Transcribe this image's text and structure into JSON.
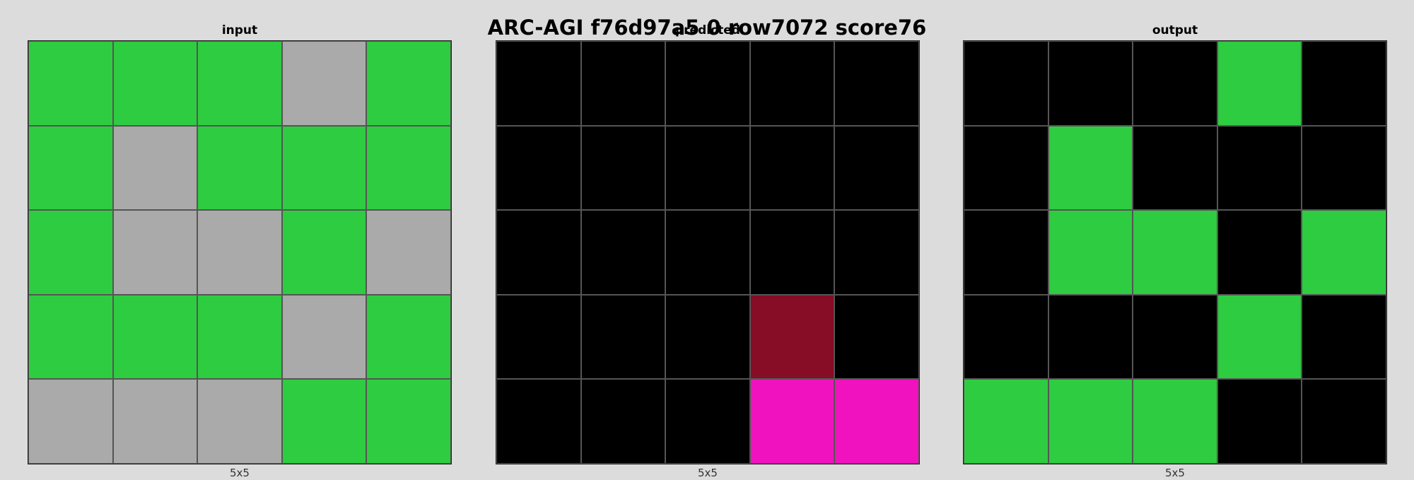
{
  "title": "ARC-AGI f76d97a5 0 row7072 score76",
  "palette": {
    "0": "#000000",
    "3": "#2ecc40",
    "5": "#aaaaaa",
    "6": "#f012be",
    "9": "#870c25"
  },
  "panels": [
    {
      "name": "input",
      "label": "input",
      "dims": "5x5",
      "grid": [
        [
          3,
          3,
          3,
          5,
          3
        ],
        [
          3,
          5,
          3,
          3,
          3
        ],
        [
          3,
          5,
          5,
          3,
          5
        ],
        [
          3,
          3,
          3,
          5,
          3
        ],
        [
          5,
          5,
          5,
          3,
          3
        ]
      ]
    },
    {
      "name": "predicted",
      "label": "predicted",
      "dims": "5x5",
      "grid": [
        [
          0,
          0,
          0,
          0,
          0
        ],
        [
          0,
          0,
          0,
          0,
          0
        ],
        [
          0,
          0,
          0,
          0,
          0
        ],
        [
          0,
          0,
          0,
          9,
          0
        ],
        [
          0,
          0,
          0,
          6,
          6
        ]
      ]
    },
    {
      "name": "output",
      "label": "output",
      "dims": "5x5",
      "grid": [
        [
          0,
          0,
          0,
          3,
          0
        ],
        [
          0,
          3,
          0,
          0,
          0
        ],
        [
          0,
          3,
          3,
          0,
          3
        ],
        [
          0,
          0,
          0,
          3,
          0
        ],
        [
          3,
          3,
          3,
          0,
          0
        ]
      ]
    }
  ]
}
